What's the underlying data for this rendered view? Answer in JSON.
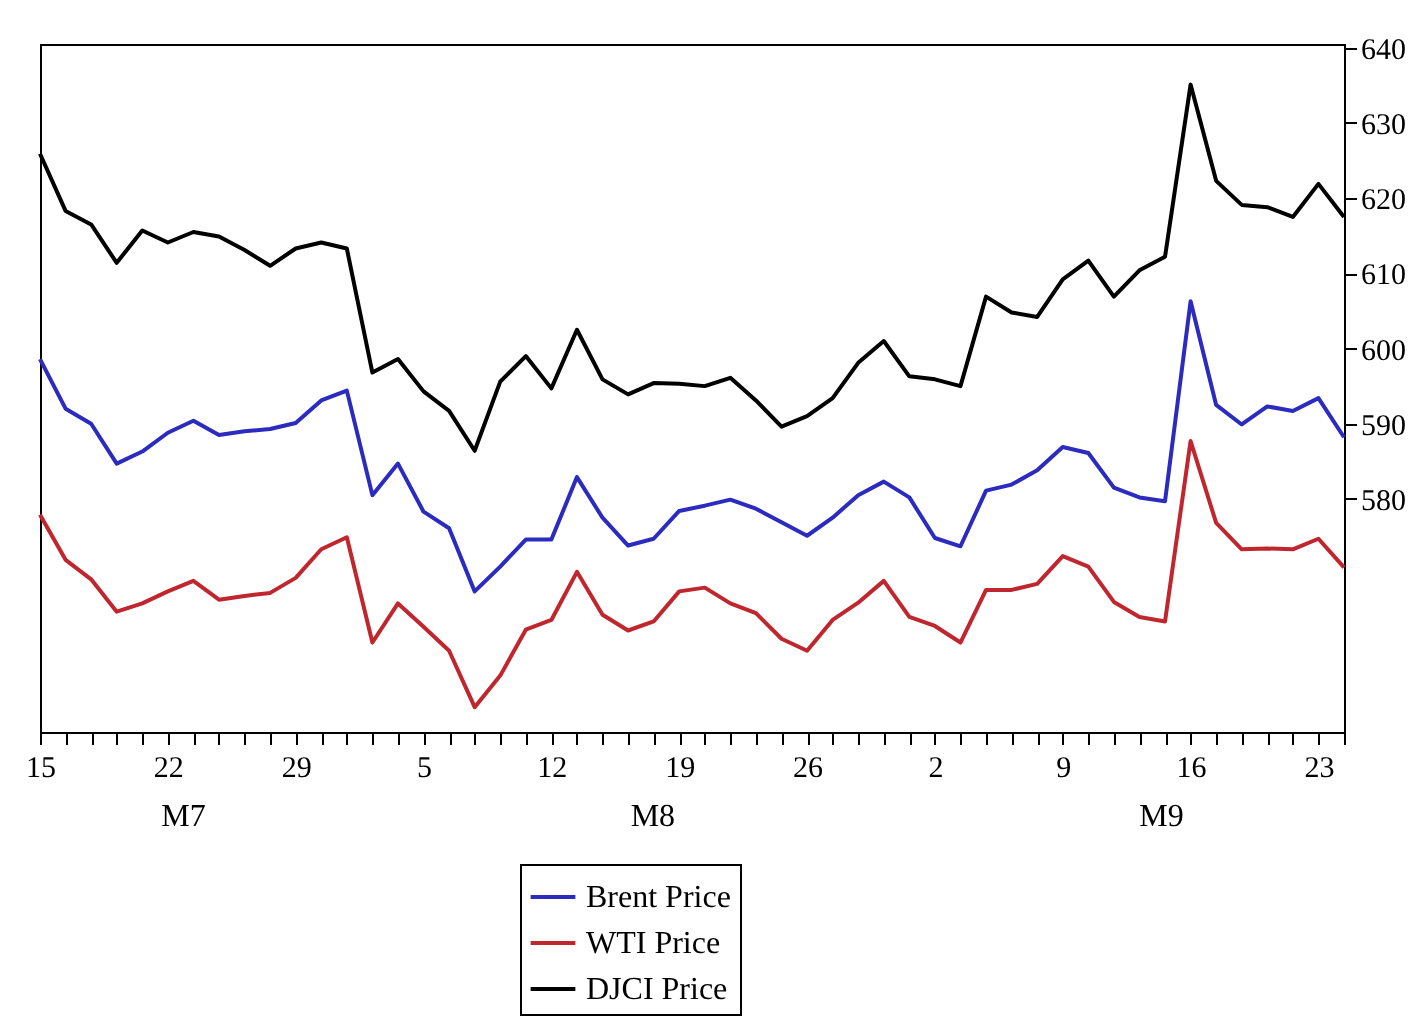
{
  "chart_data": {
    "type": "line",
    "categories": [
      "15",
      null,
      null,
      null,
      null,
      "22",
      null,
      null,
      null,
      null,
      "29",
      null,
      null,
      null,
      null,
      "5",
      null,
      null,
      null,
      null,
      "12",
      null,
      null,
      null,
      null,
      "19",
      null,
      null,
      null,
      null,
      "26",
      null,
      null,
      null,
      null,
      "2",
      null,
      null,
      null,
      null,
      "9",
      null,
      null,
      null,
      null,
      "16",
      null,
      null,
      null,
      null,
      "23",
      null
    ],
    "series": [
      {
        "name": "Brent Price",
        "color": "#2b2bbf",
        "values": [
          598.6,
          592.0,
          590.0,
          584.7,
          586.3,
          588.8,
          590.4,
          588.5,
          589.0,
          589.3,
          590.1,
          593.1,
          594.4,
          580.5,
          584.7,
          578.3,
          576.1,
          567.7,
          571.0,
          574.6,
          574.6,
          582.9,
          577.5,
          573.8,
          574.7,
          578.4,
          579.1,
          579.9,
          578.7,
          576.9,
          575.1,
          577.5,
          580.5,
          582.3,
          580.2,
          574.8,
          573.7,
          581.1,
          581.9,
          583.8,
          586.9,
          586.1,
          581.5,
          580.2,
          579.7,
          606.3,
          592.5,
          589.9,
          592.3,
          591.7,
          593.4,
          588.2
        ]
      },
      {
        "name": "WTI Price",
        "color": "#c0262d",
        "values": [
          577.9,
          571.9,
          569.3,
          565.0,
          566.1,
          567.7,
          569.1,
          566.6,
          567.1,
          567.5,
          569.5,
          573.3,
          574.9,
          560.9,
          566.1,
          563.0,
          559.8,
          552.3,
          556.5,
          562.6,
          563.9,
          570.3,
          564.6,
          562.5,
          563.7,
          567.7,
          568.2,
          566.1,
          564.8,
          561.4,
          559.8,
          563.9,
          566.2,
          569.1,
          564.3,
          563.1,
          560.9,
          567.9,
          567.9,
          568.7,
          572.4,
          571.0,
          566.3,
          564.3,
          563.7,
          587.7,
          576.8,
          573.3,
          573.4,
          573.3,
          574.7,
          570.9
        ]
      },
      {
        "name": "DJCI Price",
        "color": "#000000",
        "values": [
          625.9,
          618.3,
          616.5,
          611.4,
          615.7,
          614.1,
          615.5,
          614.9,
          613.1,
          611.0,
          613.3,
          614.1,
          613.3,
          596.8,
          598.6,
          594.3,
          591.7,
          586.4,
          595.6,
          599.0,
          594.7,
          602.5,
          595.9,
          593.9,
          595.4,
          595.3,
          595.0,
          596.1,
          593.1,
          589.6,
          591.0,
          593.4,
          598.1,
          601.0,
          596.3,
          595.9,
          595.0,
          606.9,
          604.8,
          604.2,
          609.2,
          611.7,
          606.9,
          610.4,
          612.2,
          635.1,
          622.3,
          619.1,
          618.8,
          617.5,
          621.9,
          617.5
        ]
      }
    ],
    "ylim": [
      549,
      640.5
    ],
    "yticks": [
      580,
      590,
      600,
      610,
      620,
      630,
      640
    ],
    "annotations": [
      "M7",
      "M8",
      "M9"
    ],
    "legend": "bottom",
    "grid": false,
    "line_style": "solid",
    "marker": "none"
  }
}
